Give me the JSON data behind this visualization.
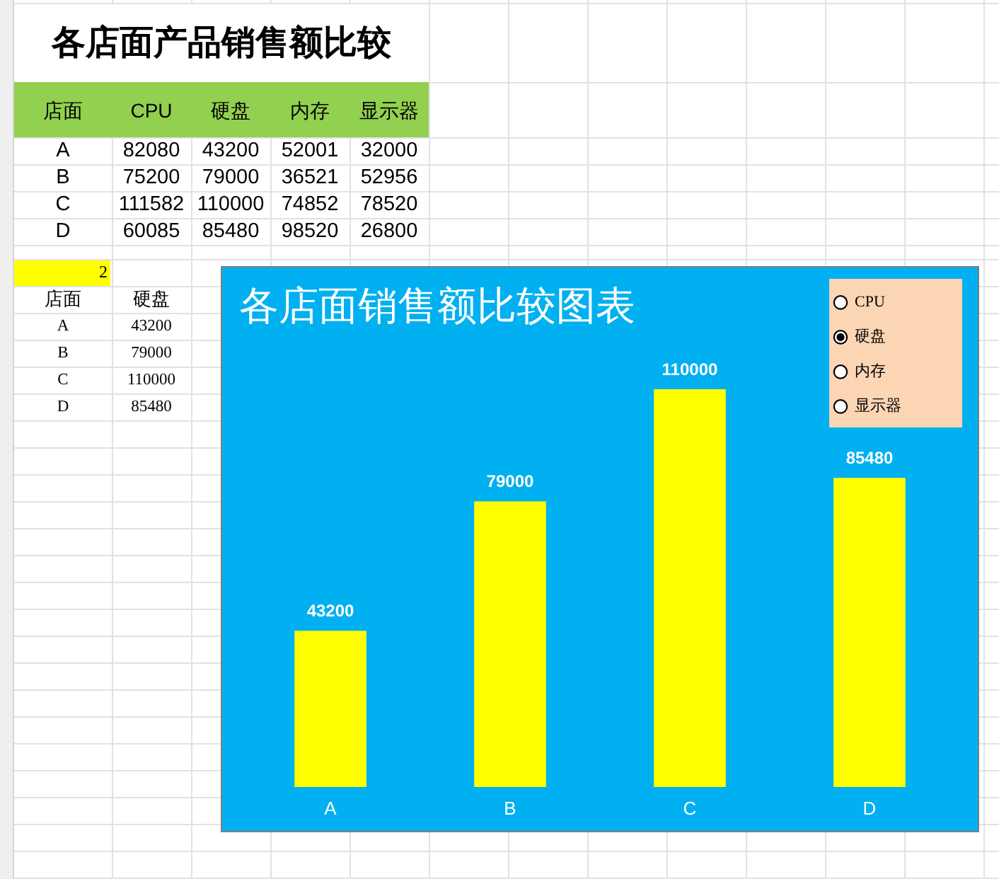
{
  "chart_data": [
    {
      "type": "heatmap",
      "title": "各店面产品销售额比较",
      "ylabel": "店面",
      "categories": [
        "CPU",
        "硬盘",
        "内存",
        "显示器"
      ],
      "y_categories": [
        "A",
        "B",
        "C",
        "D"
      ],
      "cells": [
        [
          82080,
          43200,
          52001,
          32000
        ],
        [
          75200,
          79000,
          36521,
          52956
        ],
        [
          111582,
          110000,
          74852,
          78520
        ],
        [
          60085,
          85480,
          98520,
          26800
        ]
      ],
      "data_labels": true
    },
    {
      "type": "heatmap",
      "annotations": [
        "2"
      ],
      "ylabel": "店面",
      "categories": [
        "硬盘"
      ],
      "y_categories": [
        "A",
        "B",
        "C",
        "D"
      ],
      "cells": [
        [
          43200
        ],
        [
          79000
        ],
        [
          110000
        ],
        [
          85480
        ]
      ],
      "data_labels": true
    },
    {
      "type": "bar",
      "title": "各店面销售额比较图表",
      "categories": [
        "A",
        "B",
        "C",
        "D"
      ],
      "series": [
        {
          "name": "CPU",
          "values": [
            null,
            null,
            null,
            null
          ]
        },
        {
          "name": "硬盘",
          "color": "#ffff00",
          "values": [
            43200,
            79000,
            110000,
            85480
          ]
        },
        {
          "name": "内存",
          "values": [
            null,
            null,
            null,
            null
          ]
        },
        {
          "name": "显示器",
          "values": [
            null,
            null,
            null,
            null
          ]
        }
      ],
      "data_labels": true,
      "legend": "top right"
    }
  ]
}
